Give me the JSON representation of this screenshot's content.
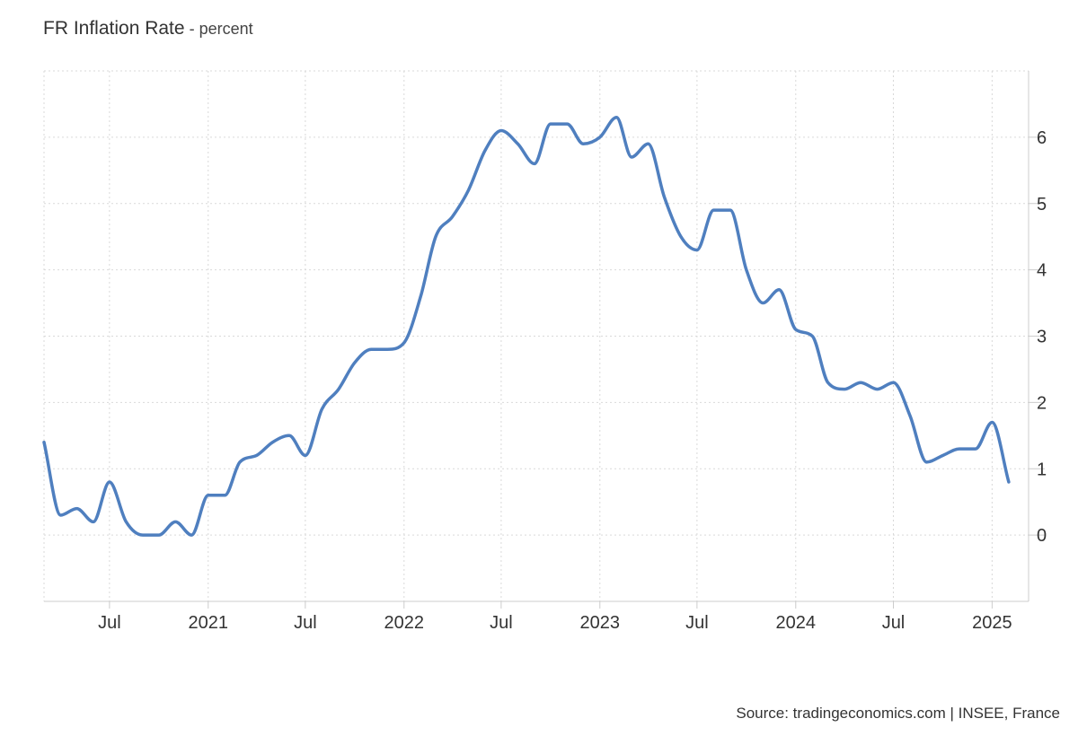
{
  "header": {
    "title": "FR Inflation Rate",
    "separator": " - ",
    "unit": "percent"
  },
  "source": "Source: tradingeconomics.com | INSEE, France",
  "colors": {
    "line": "#4f7fbf",
    "grid": "#d9d9d9",
    "axis": "#cccccc",
    "text": "#333333"
  },
  "chart_data": {
    "type": "line",
    "title": "FR Inflation Rate",
    "unit": "percent",
    "xlabel": "",
    "ylabel": "",
    "grid": true,
    "legend": "none",
    "xlim": [
      "2020-03-01",
      "2025-03-10"
    ],
    "ylim": [
      -1,
      7
    ],
    "y_ticks": [
      0,
      1,
      2,
      3,
      4,
      5,
      6
    ],
    "x_ticks": [
      {
        "date": "2020-07-01",
        "label": "Jul"
      },
      {
        "date": "2021-01-01",
        "label": "2021"
      },
      {
        "date": "2021-07-01",
        "label": "Jul"
      },
      {
        "date": "2022-01-01",
        "label": "2022"
      },
      {
        "date": "2022-07-01",
        "label": "Jul"
      },
      {
        "date": "2023-01-01",
        "label": "2023"
      },
      {
        "date": "2023-07-01",
        "label": "Jul"
      },
      {
        "date": "2024-01-01",
        "label": "2024"
      },
      {
        "date": "2024-07-01",
        "label": "Jul"
      },
      {
        "date": "2025-01-01",
        "label": "2025"
      }
    ],
    "series": [
      {
        "points": [
          [
            "2020-03-01",
            1.4
          ],
          [
            "2020-04-01",
            0.3
          ],
          [
            "2020-05-01",
            0.4
          ],
          [
            "2020-06-01",
            0.2
          ],
          [
            "2020-07-01",
            0.8
          ],
          [
            "2020-08-01",
            0.2
          ],
          [
            "2020-09-01",
            0.0
          ],
          [
            "2020-10-01",
            0.0
          ],
          [
            "2020-11-01",
            0.2
          ],
          [
            "2020-12-01",
            0.0
          ],
          [
            "2021-01-01",
            0.6
          ],
          [
            "2021-02-01",
            0.6
          ],
          [
            "2021-03-01",
            1.1
          ],
          [
            "2021-04-01",
            1.2
          ],
          [
            "2021-05-01",
            1.4
          ],
          [
            "2021-06-01",
            1.5
          ],
          [
            "2021-07-01",
            1.2
          ],
          [
            "2021-08-01",
            1.9
          ],
          [
            "2021-09-01",
            2.2
          ],
          [
            "2021-10-01",
            2.6
          ],
          [
            "2021-11-01",
            2.8
          ],
          [
            "2021-12-01",
            2.8
          ],
          [
            "2022-01-01",
            2.9
          ],
          [
            "2022-02-01",
            3.6
          ],
          [
            "2022-03-01",
            4.5
          ],
          [
            "2022-04-01",
            4.8
          ],
          [
            "2022-05-01",
            5.2
          ],
          [
            "2022-06-01",
            5.8
          ],
          [
            "2022-07-01",
            6.1
          ],
          [
            "2022-08-01",
            5.9
          ],
          [
            "2022-09-01",
            5.6
          ],
          [
            "2022-10-01",
            6.2
          ],
          [
            "2022-11-01",
            6.2
          ],
          [
            "2022-12-01",
            5.9
          ],
          [
            "2023-01-01",
            6.0
          ],
          [
            "2023-02-01",
            6.3
          ],
          [
            "2023-03-01",
            5.7
          ],
          [
            "2023-04-01",
            5.9
          ],
          [
            "2023-05-01",
            5.1
          ],
          [
            "2023-06-01",
            4.5
          ],
          [
            "2023-07-01",
            4.3
          ],
          [
            "2023-08-01",
            4.9
          ],
          [
            "2023-09-01",
            4.9
          ],
          [
            "2023-10-01",
            4.0
          ],
          [
            "2023-11-01",
            3.5
          ],
          [
            "2023-12-01",
            3.7
          ],
          [
            "2024-01-01",
            3.1
          ],
          [
            "2024-02-01",
            3.0
          ],
          [
            "2024-03-01",
            2.3
          ],
          [
            "2024-04-01",
            2.2
          ],
          [
            "2024-05-01",
            2.3
          ],
          [
            "2024-06-01",
            2.2
          ],
          [
            "2024-07-01",
            2.3
          ],
          [
            "2024-08-01",
            1.8
          ],
          [
            "2024-09-01",
            1.1
          ],
          [
            "2024-10-01",
            1.2
          ],
          [
            "2024-11-01",
            1.3
          ],
          [
            "2024-12-01",
            1.3
          ],
          [
            "2025-01-01",
            1.7
          ],
          [
            "2025-02-01",
            0.8
          ]
        ]
      }
    ]
  }
}
